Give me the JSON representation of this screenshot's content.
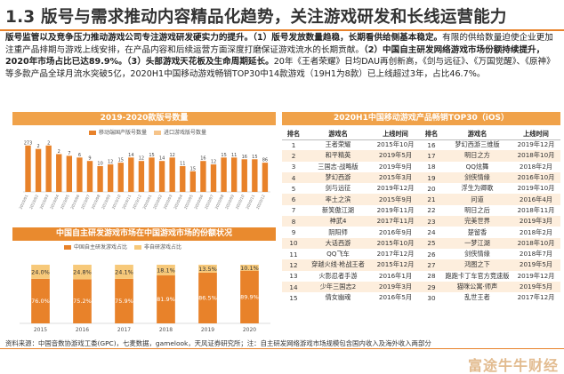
{
  "title": "1.3 版号与需求推动内容精品化趋势，关注游戏研发和长线运营能力",
  "intro": {
    "lead_bold": "版号监管以及竞争压力推动游戏公司专注游戏研发硬实力的提升。",
    "p1_bold": "（1）版号发放数量趋稳，",
    "p1_bold2": "长期看供给侧基本稳定。",
    "p1_text": "有限的供给数量迫使企业更加注重产品排期与游戏上线安排，在产品内容和后续运营方面深度打磨保证游戏流水的长期贡献。",
    "p2_bold": "（2）中国自主研发网络游戏市场份额持续提升，2020年市场占比已达89.9%。",
    "p3_bold": "（3）头部游戏天花板及生命周期延长。",
    "p3_text": "20年《王者荣耀》日均DAU再创新高，《剑与远征》、《万国觉醒》、《原神》等多款产品全球月流水突破5亿，2020H1中国移动游戏畅销TOP30中14款游戏（19H1为8款）已上线超过3年，占比46.7%。"
  },
  "chart1": {
    "header": "2019-2020款版号数量",
    "legend": [
      "移动端国产版号数量",
      "进口游戏版号数量"
    ],
    "colors": {
      "domestic": "#e8822a",
      "import": "#f6c48a"
    }
  },
  "chart2": {
    "header": "中国自主研发游戏市场在中国游戏市场的份额状况",
    "legend": [
      "中国自主研发游戏占比",
      "非自研游戏占比"
    ],
    "colors": {
      "self": "#e8822a",
      "non": "#f7c97a"
    }
  },
  "chart_data": [
    {
      "type": "bar",
      "title": "2019-2020款版号数量",
      "categories": [
        "2019/01",
        "2019/02",
        "2019/03",
        "2019/04",
        "2019/05",
        "2019/06",
        "2019/07",
        "2019/08",
        "2019/09",
        "2019/10",
        "2019/11",
        "2019/12",
        "2020/01",
        "2020/02",
        "2020/03",
        "2020/04",
        "2020/05",
        "2020/06",
        "2020/07",
        "2020/08",
        "2020/09",
        "2020/10",
        "2020/11",
        "2020/12"
      ],
      "series": [
        {
          "name": "移动端国产版号数量",
          "values": [
            27,
            25,
            27,
            22,
            21,
            20,
            18,
            15,
            16,
            17,
            20,
            18,
            20,
            18,
            20,
            15,
            12,
            18,
            16,
            20,
            20,
            19,
            19,
            17
          ]
        },
        {
          "name": "进口游戏版号数量",
          "values": [
            0,
            0,
            0,
            0,
            0,
            0,
            0,
            0,
            0,
            0,
            0,
            0,
            0,
            0,
            0,
            0,
            0,
            0,
            0,
            0,
            0,
            0,
            0,
            0
          ]
        }
      ],
      "data_labels": [
        "273",
        "2",
        "2",
        "2",
        "7",
        "6",
        "9",
        "10",
        "12",
        "15",
        "14",
        "12",
        "15",
        "14",
        "12",
        "11",
        "15",
        "16",
        "12",
        "15",
        "11",
        "16",
        "15",
        "86"
      ],
      "ylim": [
        0,
        30
      ]
    },
    {
      "type": "bar",
      "title": "中国自主研发游戏市场在中国游戏市场的份额状况",
      "categories": [
        "2015",
        "2016",
        "2017",
        "2018",
        "2019",
        "2020"
      ],
      "series": [
        {
          "name": "中国自主研发游戏占比",
          "values": [
            76.0,
            75.2,
            75.9,
            81.9,
            86.5,
            89.9
          ]
        },
        {
          "name": "非自研游戏占比",
          "values": [
            24.0,
            24.8,
            24.1,
            18.1,
            13.5,
            10.1
          ]
        }
      ],
      "labels_self": [
        "76.0%",
        "75.2%",
        "75.9%",
        "81.9%",
        "86.5%",
        "89.9%"
      ],
      "labels_non": [
        "24.0%",
        "24.8%",
        "24.1%",
        "18.1%",
        "13.5%",
        "10.1%"
      ],
      "stacked": true,
      "ylim": [
        0,
        100
      ]
    }
  ],
  "table": {
    "header": "2020H1中国移动游戏产品畅销TOP30（iOS）",
    "columns": [
      "排名",
      "游戏名",
      "上线时间",
      "排名",
      "游戏名",
      "上线时间"
    ],
    "rows": [
      [
        "1",
        "王者荣耀",
        "2015年10月",
        "16",
        "梦幻西游三维版",
        "2019年12月"
      ],
      [
        "2",
        "和平精英",
        "2019年5月",
        "17",
        "明日之方",
        "2018年10月"
      ],
      [
        "3",
        "三国志·战略版",
        "2019年9月",
        "18",
        "QQ炫舞",
        "2018年2月"
      ],
      [
        "4",
        "梦幻西游",
        "2015年3月",
        "19",
        "剑侠情缘",
        "2016年10月"
      ],
      [
        "5",
        "剑与远征",
        "2019年12月",
        "20",
        "浮生为卿歌",
        "2019年10月"
      ],
      [
        "6",
        "率土之滨",
        "2015年9月",
        "21",
        "问道",
        "2016年4月"
      ],
      [
        "7",
        "新笑傲江湖",
        "2019年11月",
        "22",
        "明日之后",
        "2018年11月"
      ],
      [
        "8",
        "神武4",
        "2017年11月",
        "23",
        "完美世界",
        "2019年3月"
      ],
      [
        "9",
        "阴阳师",
        "2016年9月",
        "24",
        "楚留香",
        "2018年2月"
      ],
      [
        "10",
        "大话西游",
        "2015年10月",
        "25",
        "一梦江湖",
        "2018年10月"
      ],
      [
        "11",
        "QQ飞车",
        "2017年12月",
        "26",
        "剑侠情缘",
        "2018年7月"
      ],
      [
        "12",
        "穿越火线·枪战王者",
        "2015年12月",
        "27",
        "鸿图之下",
        "2019年5月"
      ],
      [
        "13",
        "火影忍者手游",
        "2016年1月",
        "28",
        "跑跑卡丁车官方竞速版",
        "2019年12月"
      ],
      [
        "14",
        "少年三国志2",
        "2019年3月",
        "29",
        "猫咪公寓·师声",
        "2019年5月"
      ],
      [
        "15",
        "倩女幽魂",
        "2016年5月",
        "30",
        "乱世王者",
        "2017年12月"
      ]
    ]
  },
  "source": "资料来源：中国音数协游戏工委(GPC)，七麦数据，gamelook，天风证券研究所；注：自主研发网络游戏市场规模包含国内收入及海外收入两部分",
  "watermark": "富途牛牛财经"
}
